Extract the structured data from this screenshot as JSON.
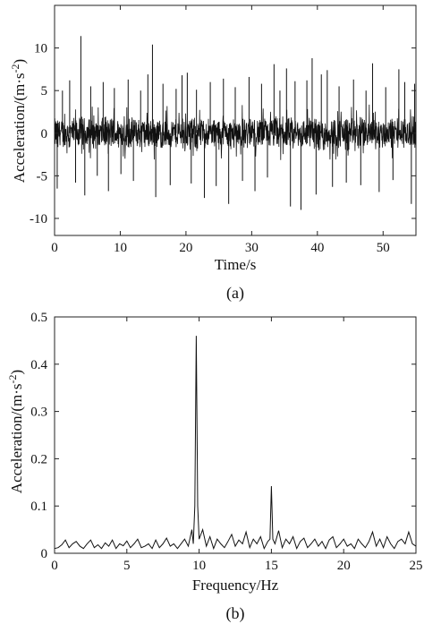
{
  "chart_data": [
    {
      "type": "line",
      "panel_label": "(a)",
      "xlabel": "Time/s",
      "ylabel_main": "Acceleration/(m·s",
      "ylabel_sup": "-2",
      "ylabel_close": ")",
      "xlim": [
        0,
        55
      ],
      "ylim": [
        -12,
        15
      ],
      "xticks": [
        0,
        10,
        20,
        30,
        40,
        50
      ],
      "yticks": [
        -10,
        -5,
        0,
        5,
        10
      ],
      "grid": false,
      "color": "#111111",
      "signal": {
        "description_values": "vibration acceleration time history",
        "baseline_band": [
          -2,
          2
        ],
        "dense_region_ends": 43.5,
        "spikes": [
          {
            "x": 0.4,
            "y": -6.5
          },
          {
            "x": 1.2,
            "y": 5.0
          },
          {
            "x": 2.3,
            "y": 6.2
          },
          {
            "x": 3.2,
            "y": -5.8
          },
          {
            "x": 4.0,
            "y": 11.4
          },
          {
            "x": 4.6,
            "y": -7.3
          },
          {
            "x": 5.5,
            "y": 5.5
          },
          {
            "x": 6.5,
            "y": -5.0
          },
          {
            "x": 7.4,
            "y": 6.0
          },
          {
            "x": 8.2,
            "y": -6.8
          },
          {
            "x": 9.1,
            "y": 5.3
          },
          {
            "x": 10.1,
            "y": -4.8
          },
          {
            "x": 11.2,
            "y": 6.3
          },
          {
            "x": 12.0,
            "y": -5.6
          },
          {
            "x": 13.1,
            "y": 5.0
          },
          {
            "x": 14.2,
            "y": 6.9
          },
          {
            "x": 14.9,
            "y": 10.4
          },
          {
            "x": 15.4,
            "y": -7.5
          },
          {
            "x": 16.5,
            "y": 5.8
          },
          {
            "x": 17.6,
            "y": -6.1
          },
          {
            "x": 18.5,
            "y": 5.2
          },
          {
            "x": 19.4,
            "y": 6.8
          },
          {
            "x": 20.2,
            "y": 7.1
          },
          {
            "x": 20.8,
            "y": -5.9
          },
          {
            "x": 21.6,
            "y": 5.1
          },
          {
            "x": 22.8,
            "y": -7.6
          },
          {
            "x": 23.7,
            "y": 6.0
          },
          {
            "x": 24.6,
            "y": -6.2
          },
          {
            "x": 25.7,
            "y": 6.4
          },
          {
            "x": 26.5,
            "y": -8.3
          },
          {
            "x": 27.5,
            "y": 5.4
          },
          {
            "x": 28.6,
            "y": -5.6
          },
          {
            "x": 29.6,
            "y": 6.6
          },
          {
            "x": 30.5,
            "y": -6.8
          },
          {
            "x": 31.5,
            "y": 5.8
          },
          {
            "x": 32.4,
            "y": -5.2
          },
          {
            "x": 33.4,
            "y": 8.1
          },
          {
            "x": 34.3,
            "y": 5.0
          },
          {
            "x": 35.3,
            "y": 7.6
          },
          {
            "x": 35.9,
            "y": -8.6
          },
          {
            "x": 36.6,
            "y": 6.1
          },
          {
            "x": 37.5,
            "y": -9.0
          },
          {
            "x": 38.4,
            "y": 6.2
          },
          {
            "x": 39.2,
            "y": 8.8
          },
          {
            "x": 39.8,
            "y": -7.2
          },
          {
            "x": 40.6,
            "y": 6.9
          },
          {
            "x": 41.5,
            "y": 7.4
          },
          {
            "x": 42.3,
            "y": -6.3
          },
          {
            "x": 43.3,
            "y": 5.5
          },
          {
            "x": 44.4,
            "y": -5.8
          },
          {
            "x": 45.5,
            "y": 6.3
          },
          {
            "x": 46.6,
            "y": -6.1
          },
          {
            "x": 47.4,
            "y": 5.0
          },
          {
            "x": 48.4,
            "y": 8.2
          },
          {
            "x": 49.4,
            "y": -6.9
          },
          {
            "x": 50.4,
            "y": 5.4
          },
          {
            "x": 51.5,
            "y": -5.5
          },
          {
            "x": 52.4,
            "y": 7.5
          },
          {
            "x": 53.3,
            "y": 6.0
          },
          {
            "x": 54.3,
            "y": -8.3
          },
          {
            "x": 54.8,
            "y": 5.8
          }
        ]
      }
    },
    {
      "type": "line",
      "panel_label": "(b)",
      "xlabel": "Frequency/Hz",
      "ylabel_main": "Acceleration/(m·s",
      "ylabel_sup": "-2",
      "ylabel_close": ")",
      "xlim": [
        0,
        25
      ],
      "ylim": [
        0,
        0.5
      ],
      "xticks": [
        0,
        5,
        10,
        15,
        20,
        25
      ],
      "yticks": [
        0,
        0.1,
        0.2,
        0.3,
        0.4,
        0.5
      ],
      "ytick_labels": [
        "0",
        "0.1",
        "0.2",
        "0.3",
        "0.4",
        "0.5"
      ],
      "grid": false,
      "color": "#111111",
      "x": [
        0,
        0.25,
        0.5,
        0.75,
        1.0,
        1.25,
        1.5,
        1.75,
        2.0,
        2.25,
        2.5,
        2.75,
        3.0,
        3.25,
        3.5,
        3.75,
        4.0,
        4.25,
        4.5,
        4.75,
        5.0,
        5.25,
        5.5,
        5.75,
        6.0,
        6.25,
        6.5,
        6.75,
        7.0,
        7.25,
        7.5,
        7.75,
        8.0,
        8.25,
        8.5,
        8.75,
        9.0,
        9.25,
        9.5,
        9.6,
        9.7,
        9.8,
        9.9,
        10.0,
        10.25,
        10.5,
        10.75,
        11.0,
        11.25,
        11.5,
        11.75,
        12.0,
        12.25,
        12.5,
        12.75,
        13.0,
        13.25,
        13.5,
        13.75,
        14.0,
        14.25,
        14.5,
        14.75,
        14.9,
        15.0,
        15.1,
        15.25,
        15.5,
        15.75,
        16.0,
        16.25,
        16.5,
        16.75,
        17.0,
        17.25,
        17.5,
        17.75,
        18.0,
        18.25,
        18.5,
        18.75,
        19.0,
        19.25,
        19.5,
        19.75,
        20.0,
        20.25,
        20.5,
        20.75,
        21.0,
        21.25,
        21.5,
        21.75,
        22.0,
        22.25,
        22.5,
        22.75,
        23.0,
        23.25,
        23.5,
        23.75,
        24.0,
        24.25,
        24.5,
        24.75,
        25.0
      ],
      "y": [
        0.01,
        0.012,
        0.018,
        0.028,
        0.012,
        0.02,
        0.025,
        0.015,
        0.01,
        0.02,
        0.028,
        0.012,
        0.018,
        0.01,
        0.022,
        0.015,
        0.028,
        0.01,
        0.02,
        0.016,
        0.026,
        0.012,
        0.02,
        0.03,
        0.012,
        0.015,
        0.02,
        0.01,
        0.028,
        0.012,
        0.02,
        0.032,
        0.015,
        0.02,
        0.01,
        0.02,
        0.03,
        0.015,
        0.05,
        0.02,
        0.1,
        0.46,
        0.1,
        0.03,
        0.05,
        0.015,
        0.035,
        0.01,
        0.03,
        0.02,
        0.012,
        0.025,
        0.04,
        0.015,
        0.028,
        0.02,
        0.045,
        0.012,
        0.03,
        0.02,
        0.035,
        0.01,
        0.025,
        0.03,
        0.142,
        0.03,
        0.02,
        0.048,
        0.012,
        0.03,
        0.02,
        0.035,
        0.01,
        0.025,
        0.032,
        0.012,
        0.02,
        0.03,
        0.015,
        0.025,
        0.01,
        0.028,
        0.035,
        0.012,
        0.02,
        0.03,
        0.015,
        0.02,
        0.01,
        0.03,
        0.02,
        0.012,
        0.025,
        0.045,
        0.015,
        0.03,
        0.012,
        0.035,
        0.02,
        0.01,
        0.025,
        0.03,
        0.02,
        0.045,
        0.02,
        0.015
      ]
    }
  ]
}
